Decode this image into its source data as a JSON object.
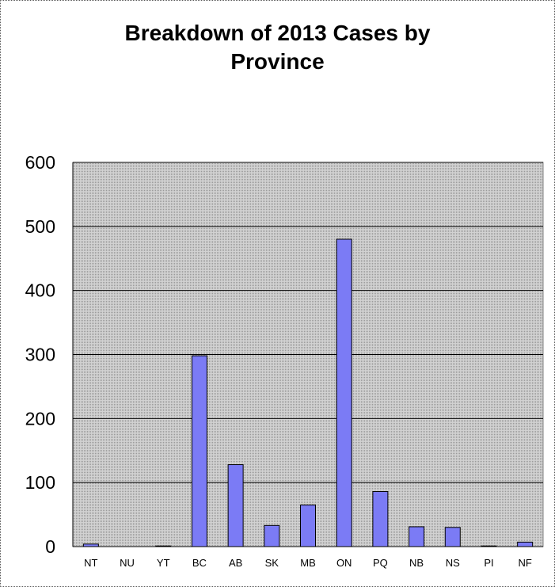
{
  "chart_data": {
    "type": "bar",
    "title_lines": [
      "Breakdown of 2013 Cases by",
      "Province"
    ],
    "categories": [
      "NT",
      "NU",
      "YT",
      "BC",
      "AB",
      "SK",
      "MB",
      "ON",
      "PQ",
      "NB",
      "NS",
      "PI",
      "NF"
    ],
    "values": [
      4,
      0,
      1,
      298,
      128,
      33,
      65,
      480,
      86,
      31,
      30,
      1,
      7
    ],
    "xlabel": "",
    "ylabel": "",
    "ylim": [
      0,
      600
    ],
    "yticks": [
      0,
      100,
      200,
      300,
      400,
      500,
      600
    ],
    "grid": true,
    "legend": "none",
    "colors": {
      "bar_fill": "#7b7bf5",
      "bar_stroke": "#000000",
      "plot_background": "#c6c6c6",
      "grid": "#000000"
    }
  }
}
